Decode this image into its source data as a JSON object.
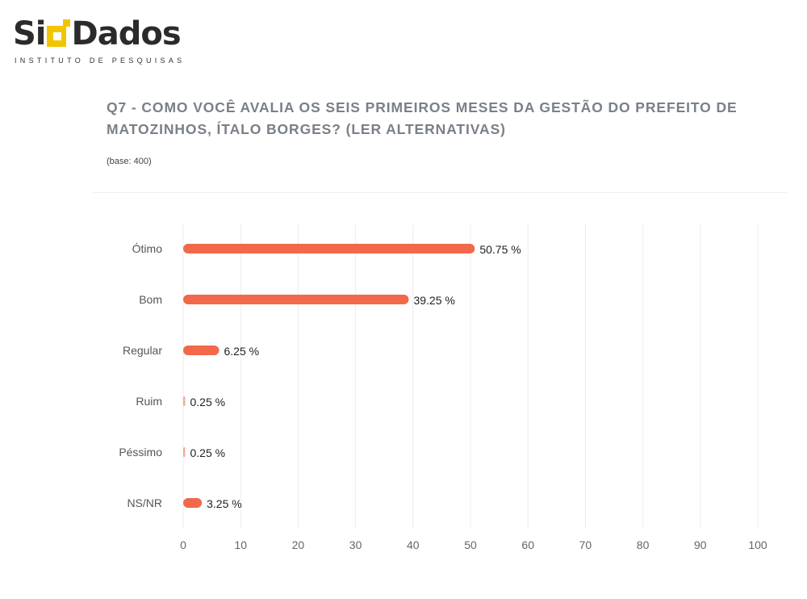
{
  "logo": {
    "left": "Si",
    "right": "Dados",
    "tagline": "INSTITUTO DE PESQUISAS"
  },
  "header": {
    "title": "Q7 - COMO VOCÊ AVALIA OS SEIS PRIMEIROS MESES DA GESTÃO DO PREFEITO DE MATOZINHOS, ÍTALO BORGES? (LER ALTERNATIVAS)",
    "base": "(base: 400)"
  },
  "chart_data": {
    "type": "bar",
    "orientation": "horizontal",
    "categories": [
      "Ótimo",
      "Bom",
      "Regular",
      "Ruim",
      "Péssimo",
      "NS/NR"
    ],
    "values": [
      50.75,
      39.25,
      6.25,
      0.25,
      0.25,
      3.25
    ],
    "value_labels": [
      "50.75 %",
      "39.25 %",
      "6.25 %",
      "0.25 %",
      "0.25 %",
      "3.25 %"
    ],
    "xlim": [
      0,
      100
    ],
    "xticks": [
      0,
      10,
      20,
      30,
      40,
      50,
      60,
      70,
      80,
      90,
      100
    ],
    "grid": true,
    "bar_color": "#f2684a"
  }
}
